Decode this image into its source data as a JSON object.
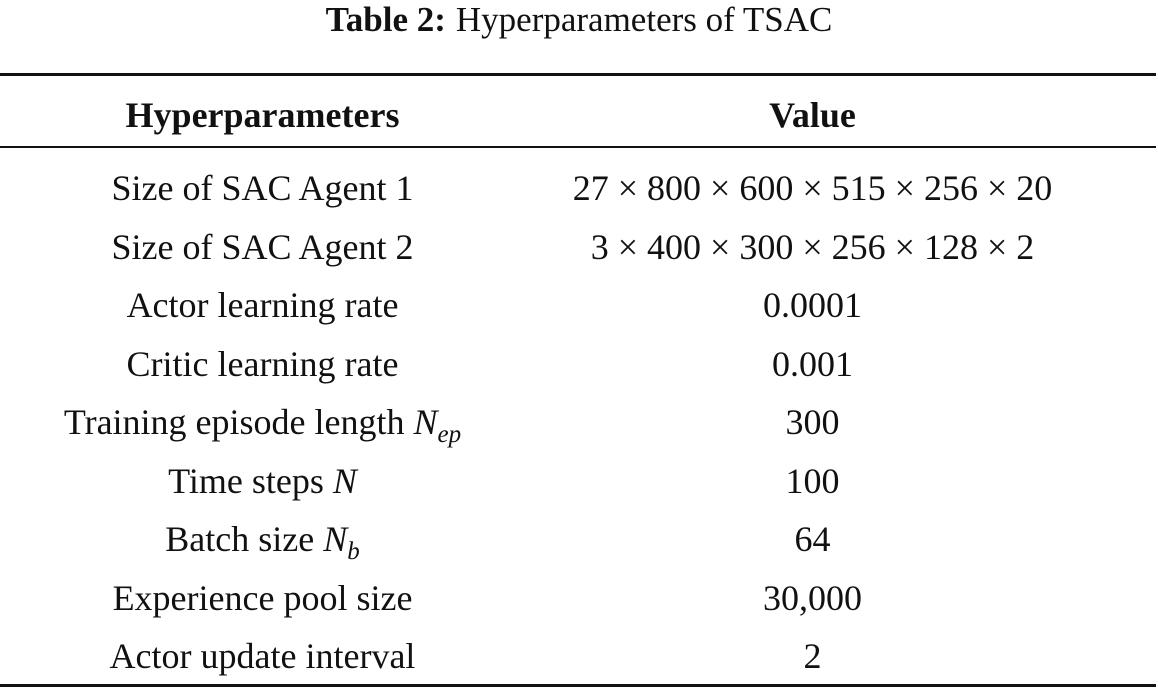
{
  "caption": {
    "label": "Table 2:",
    "text": "Hyperparameters of TSAC"
  },
  "table": {
    "header": [
      "Hyperparameters",
      "Value"
    ],
    "rows": [
      {
        "parameter": "Size of SAC Agent 1",
        "value": "27 × 800 × 600 × 515 × 256 × 20"
      },
      {
        "parameter": "Size of SAC Agent 2",
        "value": "3 × 400 × 300 × 256 × 128 × 2"
      },
      {
        "parameter": "Actor learning rate",
        "value": "0.0001"
      },
      {
        "parameter": "Critic learning rate",
        "value": "0.001"
      },
      {
        "parameter": "Training episode length",
        "symbol": "N",
        "subscript": "ep",
        "value": "300"
      },
      {
        "parameter": "Time steps",
        "symbol": "N",
        "value": "100"
      },
      {
        "parameter": "Batch size",
        "symbol": "N",
        "subscript": "b",
        "value": "64"
      },
      {
        "parameter": "Experience pool size",
        "value": "30,000"
      },
      {
        "parameter": "Actor update interval",
        "value": "2"
      }
    ]
  }
}
